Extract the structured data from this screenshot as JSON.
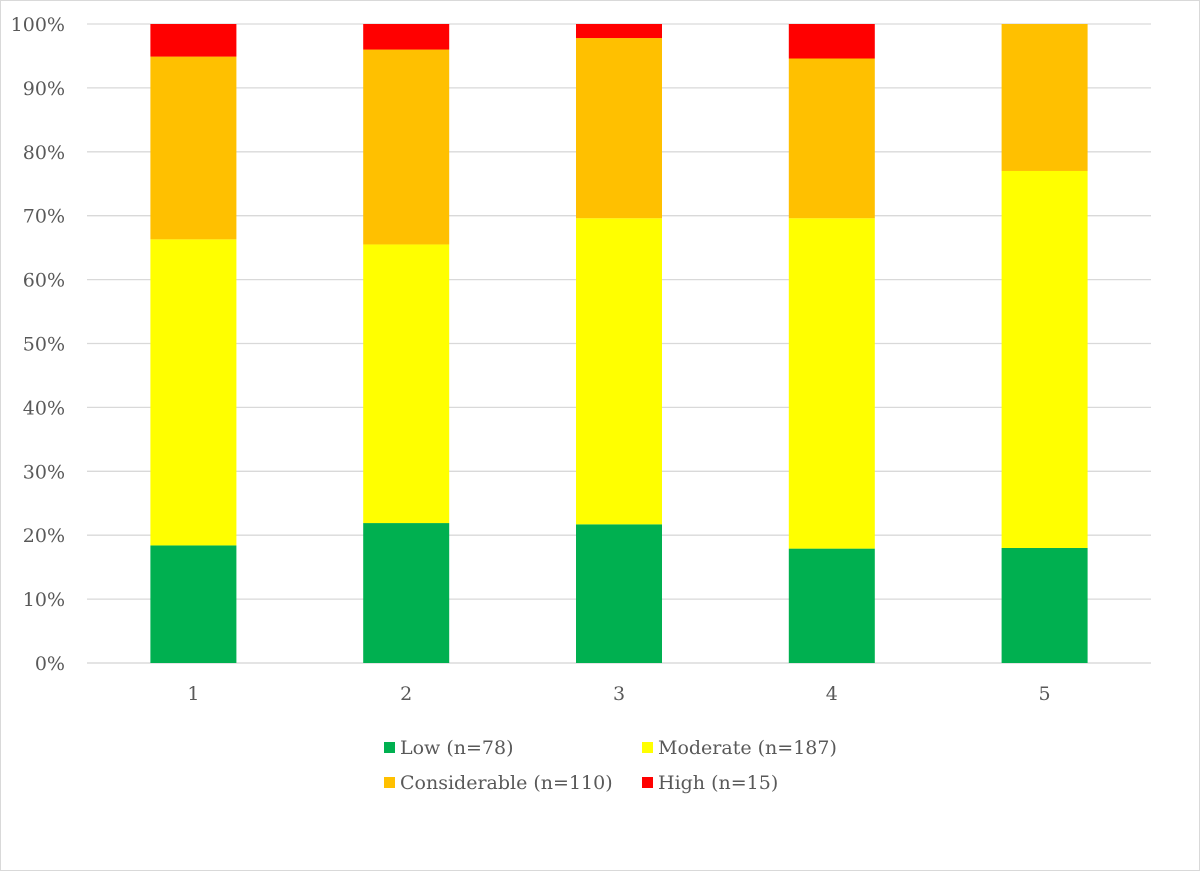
{
  "chart_data": {
    "type": "bar",
    "stacked": true,
    "normalized": true,
    "categories": [
      "1",
      "2",
      "3",
      "4",
      "5"
    ],
    "series": [
      {
        "name": "Low (n=78)",
        "color": "#00b050",
        "values": [
          18.4,
          21.9,
          21.7,
          17.9,
          18.0
        ]
      },
      {
        "name": "Moderate (n=187)",
        "color": "#ffff00",
        "values": [
          47.9,
          43.6,
          47.9,
          51.7,
          59.0
        ]
      },
      {
        "name": "Considerable (n=110)",
        "color": "#ffc000",
        "values": [
          28.6,
          30.5,
          28.2,
          25.0,
          23.0
        ]
      },
      {
        "name": "High (n=15)",
        "color": "#ff0000",
        "values": [
          5.1,
          4.0,
          2.2,
          5.4,
          0.0
        ]
      }
    ],
    "y_ticks": [
      "0%",
      "10%",
      "20%",
      "30%",
      "40%",
      "50%",
      "60%",
      "70%",
      "80%",
      "90%",
      "100%"
    ],
    "ylim": [
      0,
      100
    ],
    "grid": true,
    "legend_position": "bottom",
    "title": "",
    "xlabel": "",
    "ylabel": ""
  }
}
